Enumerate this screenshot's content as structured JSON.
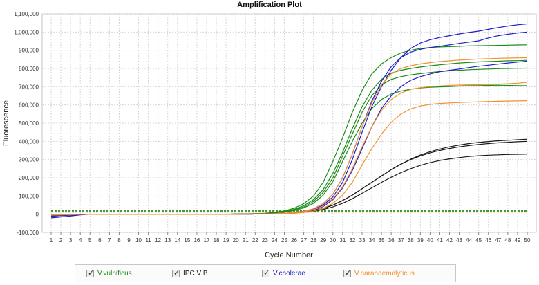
{
  "chart_data": {
    "type": "line",
    "title": "Amplification Plot",
    "xlabel": "Cycle Number",
    "ylabel": "Fluorescence",
    "xlim": [
      1,
      50
    ],
    "ylim": [
      -100000,
      1100000
    ],
    "x_ticks": [
      1,
      2,
      3,
      4,
      5,
      6,
      7,
      8,
      9,
      10,
      11,
      12,
      13,
      14,
      15,
      16,
      17,
      18,
      19,
      20,
      21,
      22,
      23,
      24,
      25,
      26,
      27,
      28,
      29,
      30,
      31,
      32,
      33,
      34,
      35,
      36,
      37,
      38,
      39,
      40,
      41,
      42,
      43,
      44,
      45,
      46,
      47,
      48,
      49,
      50
    ],
    "y_ticks": [
      -100000,
      0,
      100000,
      200000,
      300000,
      400000,
      500000,
      600000,
      700000,
      800000,
      900000,
      1000000,
      1100000
    ],
    "y_tick_labels": [
      "-100,000",
      "0",
      "100,000",
      "200,000",
      "300,000",
      "400,000",
      "500,000",
      "600,000",
      "700,000",
      "800,000",
      "900,000",
      "1,000,000",
      "1,100,000"
    ],
    "thresholds": [
      {
        "value": 12000,
        "color": "#ff8c1a"
      },
      {
        "value": 18000,
        "color": "#1a8c1a"
      }
    ],
    "series": [
      {
        "name": "V.vulnificus",
        "color": "#1a8c1a",
        "values": [
          -8000,
          -6000,
          -3000,
          -1000,
          0,
          0,
          0,
          0,
          0,
          0,
          0,
          0,
          0,
          0,
          0,
          0,
          0,
          0,
          0,
          1000,
          2000,
          3000,
          5000,
          10000,
          18000,
          33000,
          58000,
          100000,
          175000,
          290000,
          420000,
          560000,
          680000,
          770000,
          825000,
          860000,
          885000,
          900000,
          910000,
          915000,
          918000,
          920000,
          922000,
          924000,
          925000,
          926000,
          927000,
          928000,
          929000,
          930000
        ]
      },
      {
        "name": "V.vulnificus",
        "color": "#1a8c1a",
        "values": [
          -12000,
          -8000,
          -4000,
          -1000,
          0,
          0,
          0,
          0,
          0,
          0,
          0,
          0,
          0,
          0,
          0,
          0,
          0,
          0,
          0,
          1000,
          2000,
          3000,
          4000,
          8000,
          15000,
          27000,
          47000,
          80000,
          135000,
          225000,
          340000,
          470000,
          590000,
          680000,
          740000,
          775000,
          790000,
          800000,
          808000,
          815000,
          820000,
          825000,
          830000,
          833000,
          836000,
          838000,
          840000,
          842000,
          843000,
          845000
        ]
      },
      {
        "name": "V.vulnificus",
        "color": "#1a8c1a",
        "values": [
          -5000,
          -4000,
          -2000,
          -1000,
          0,
          0,
          0,
          0,
          0,
          0,
          0,
          0,
          0,
          0,
          0,
          0,
          0,
          0,
          0,
          1000,
          1500,
          2500,
          4000,
          7000,
          12000,
          20000,
          35000,
          60000,
          105000,
          180000,
          290000,
          400000,
          500000,
          580000,
          630000,
          660000,
          676000,
          686000,
          693000,
          697000,
          699000,
          701000,
          703000,
          705000,
          706000,
          707000,
          708000,
          707000,
          706000,
          705000
        ]
      },
      {
        "name": "V.vulnificus",
        "color": "#1a8c1a",
        "values": [
          -3000,
          -2000,
          -1000,
          0,
          0,
          0,
          0,
          0,
          0,
          0,
          0,
          0,
          0,
          0,
          0,
          0,
          0,
          0,
          0,
          500,
          1500,
          2500,
          4000,
          8000,
          14000,
          24000,
          40000,
          70000,
          120000,
          200000,
          320000,
          440000,
          560000,
          650000,
          710000,
          740000,
          755000,
          765000,
          772000,
          778000,
          783000,
          787000,
          790000,
          793000,
          795000,
          797000,
          799000,
          800000,
          801000,
          802000
        ]
      },
      {
        "name": "IPC VIB",
        "color": "#1a1a1a",
        "values": [
          -2000,
          -1500,
          -1000,
          -500,
          0,
          0,
          0,
          0,
          0,
          0,
          0,
          0,
          0,
          0,
          0,
          0,
          0,
          0,
          0,
          0,
          500,
          1000,
          2000,
          3000,
          5000,
          7000,
          12000,
          20000,
          32000,
          50000,
          75000,
          105000,
          140000,
          175000,
          210000,
          245000,
          275000,
          302000,
          325000,
          343000,
          358000,
          370000,
          380000,
          388000,
          394000,
          399000,
          403000,
          406000,
          409000,
          412000
        ]
      },
      {
        "name": "IPC VIB",
        "color": "#1a1a1a",
        "values": [
          -2000,
          -1500,
          -1000,
          -500,
          0,
          0,
          0,
          0,
          0,
          0,
          0,
          0,
          0,
          0,
          0,
          0,
          0,
          0,
          0,
          0,
          500,
          1000,
          2000,
          3000,
          5000,
          7000,
          12000,
          20000,
          32000,
          50000,
          75000,
          105000,
          140000,
          175000,
          210000,
          245000,
          275000,
          300000,
          320000,
          337000,
          350000,
          361000,
          370000,
          377000,
          383000,
          388000,
          392000,
          395000,
          398000,
          400000
        ]
      },
      {
        "name": "IPC VIB",
        "color": "#1a1a1a",
        "values": [
          -2000,
          -1500,
          -1000,
          -500,
          0,
          0,
          0,
          0,
          0,
          0,
          0,
          0,
          0,
          0,
          0,
          0,
          0,
          0,
          0,
          0,
          500,
          1000,
          2000,
          3000,
          4000,
          6000,
          10000,
          16000,
          26000,
          40000,
          60000,
          85000,
          115000,
          145000,
          175000,
          203000,
          228000,
          250000,
          268000,
          283000,
          295000,
          304000,
          311000,
          317000,
          321000,
          324000,
          326000,
          328000,
          329000,
          330000
        ]
      },
      {
        "name": "V.cholerae",
        "color": "#1c1ccc",
        "values": [
          -20000,
          -15000,
          -10000,
          -4000,
          0,
          0,
          0,
          0,
          0,
          0,
          0,
          0,
          0,
          0,
          0,
          0,
          0,
          0,
          0,
          0,
          500,
          1000,
          2000,
          3000,
          5000,
          8000,
          14000,
          26000,
          50000,
          95000,
          175000,
          300000,
          450000,
          590000,
          700000,
          790000,
          860000,
          910000,
          940000,
          958000,
          970000,
          980000,
          990000,
          998000,
          1005000,
          1015000,
          1025000,
          1033000,
          1040000,
          1045000
        ]
      },
      {
        "name": "V.cholerae",
        "color": "#1c1ccc",
        "values": [
          -10000,
          -8000,
          -5000,
          -2000,
          0,
          0,
          0,
          0,
          0,
          0,
          0,
          0,
          0,
          0,
          0,
          0,
          0,
          0,
          0,
          0,
          500,
          1000,
          2000,
          3000,
          5000,
          9000,
          16000,
          30000,
          58000,
          110000,
          200000,
          330000,
          480000,
          620000,
          730000,
          810000,
          860000,
          890000,
          905000,
          915000,
          922000,
          930000,
          938000,
          945000,
          952000,
          968000,
          980000,
          988000,
          995000,
          1000000
        ]
      },
      {
        "name": "V.cholerae",
        "color": "#1c1ccc",
        "values": [
          -8000,
          -6000,
          -4000,
          -2000,
          0,
          0,
          0,
          0,
          0,
          0,
          0,
          0,
          0,
          0,
          0,
          0,
          0,
          0,
          0,
          0,
          500,
          1000,
          1500,
          2500,
          4000,
          7000,
          12000,
          22000,
          42000,
          80000,
          145000,
          240000,
          360000,
          480000,
          580000,
          650000,
          700000,
          735000,
          755000,
          770000,
          782000,
          790000,
          797000,
          805000,
          812000,
          818000,
          824000,
          830000,
          835000,
          840000
        ]
      },
      {
        "name": "V.parahaemolyticus",
        "color": "#f0922e",
        "values": [
          -5000,
          -4000,
          -2000,
          -1000,
          0,
          0,
          0,
          0,
          0,
          0,
          0,
          0,
          0,
          0,
          0,
          0,
          0,
          0,
          0,
          0,
          500,
          1000,
          2000,
          3000,
          5000,
          9000,
          16000,
          30000,
          58000,
          110000,
          200000,
          330000,
          480000,
          610000,
          710000,
          770000,
          800000,
          815000,
          825000,
          832000,
          838000,
          842000,
          846000,
          849000,
          852000,
          854000,
          856000,
          857000,
          858000,
          859000
        ]
      },
      {
        "name": "V.parahaemolyticus",
        "color": "#f0922e",
        "values": [
          -4000,
          -3000,
          -2000,
          -1000,
          0,
          0,
          0,
          0,
          0,
          0,
          0,
          0,
          0,
          0,
          0,
          0,
          0,
          0,
          0,
          0,
          500,
          1000,
          1500,
          2500,
          4000,
          7000,
          13000,
          24000,
          45000,
          85000,
          150000,
          250000,
          370000,
          480000,
          570000,
          630000,
          665000,
          685000,
          695000,
          700000,
          704000,
          707000,
          709000,
          710000,
          711000,
          712000,
          714000,
          716000,
          719000,
          724000
        ]
      },
      {
        "name": "V.parahaemolyticus",
        "color": "#f0922e",
        "values": [
          -3000,
          -2500,
          -1500,
          -500,
          0,
          0,
          0,
          0,
          0,
          0,
          0,
          0,
          0,
          0,
          0,
          0,
          0,
          0,
          0,
          0,
          500,
          1000,
          1500,
          2000,
          3000,
          5000,
          9000,
          17000,
          32000,
          60000,
          105000,
          175000,
          270000,
          360000,
          440000,
          505000,
          550000,
          578000,
          594000,
          603000,
          608000,
          611000,
          613000,
          615000,
          617000,
          619000,
          620000,
          621000,
          622000,
          623000
        ]
      }
    ],
    "legend": [
      {
        "label": "V.vulnificus",
        "color": "#1a8c1a",
        "checked": true
      },
      {
        "label": "IPC VIB",
        "color": "#1a1a1a",
        "checked": true
      },
      {
        "label": "V.cholerae",
        "color": "#1c1ccc",
        "checked": true
      },
      {
        "label": "V.parahaemolyticus",
        "color": "#f0922e",
        "checked": true
      }
    ]
  }
}
